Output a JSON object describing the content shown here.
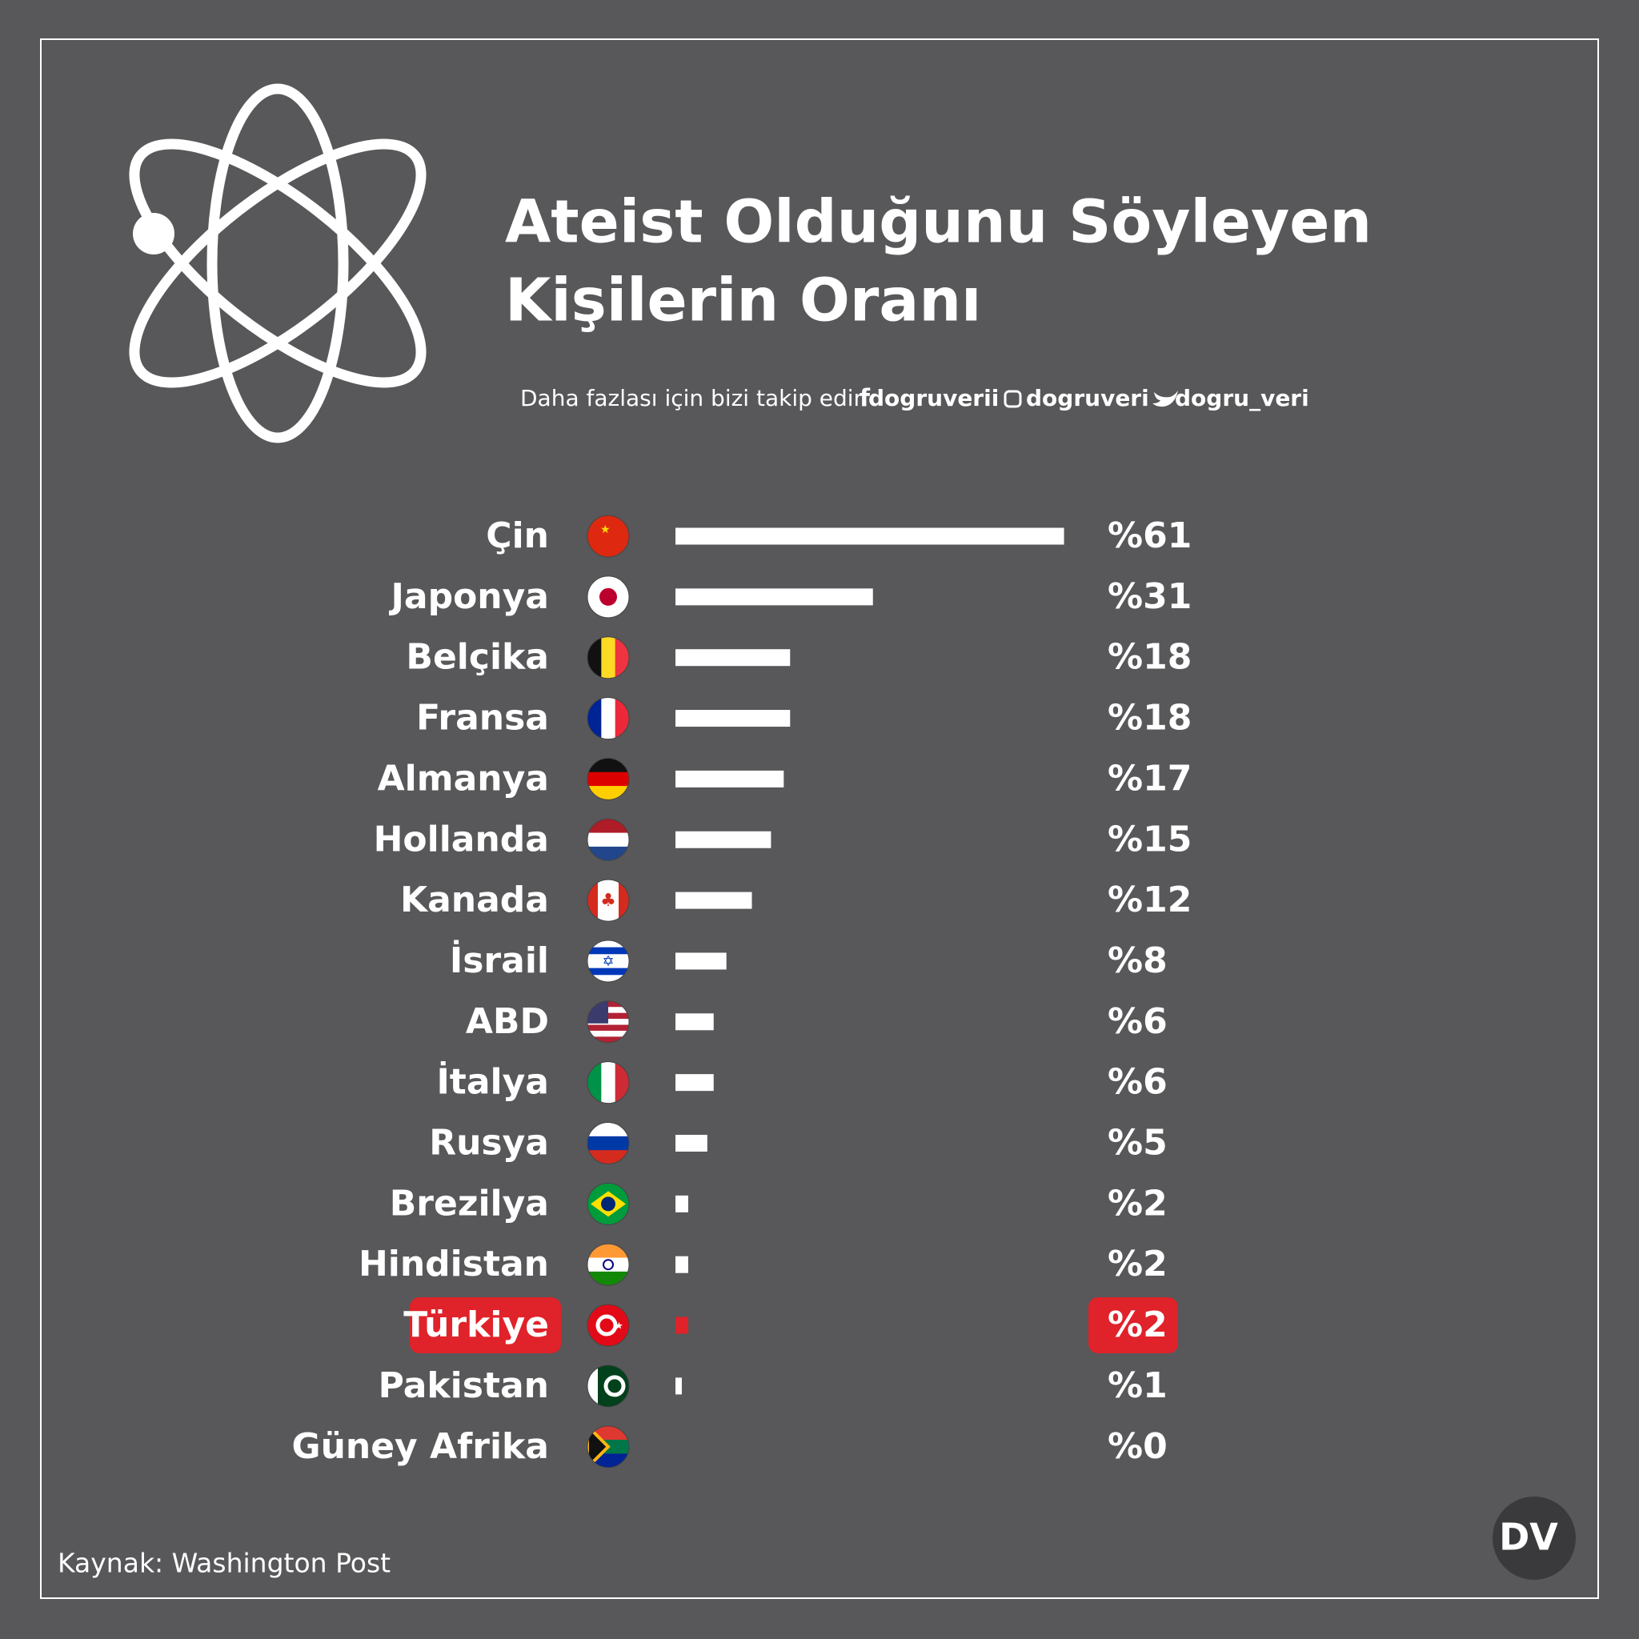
{
  "chart_data": {
    "type": "bar",
    "title": [
      "Ateist Olduğunu Söyleyen",
      "Kişilerin Oranı"
    ],
    "subtitle": "Daha fazlası için bizi takip edin",
    "social": [
      "dogruverii",
      "dogruveri",
      "dogru_veri"
    ],
    "categories": [
      "Çin",
      "Japonya",
      "Belçika",
      "Fransa",
      "Almanya",
      "Hollanda",
      "Kanada",
      "İsrail",
      "ABD",
      "İtalya",
      "Rusya",
      "Brezilya",
      "Hindistan",
      "Türkiye",
      "Pakistan",
      "Güney Afrika"
    ],
    "values": [
      61,
      31,
      18,
      18,
      17,
      15,
      12,
      8,
      6,
      6,
      5,
      2,
      2,
      2,
      1,
      0
    ],
    "value_labels": [
      "%61",
      "%31",
      "%18",
      "%18",
      "%17",
      "%15",
      "%12",
      "%8",
      "%6",
      "%6",
      "%5",
      "%2",
      "%2",
      "%2",
      "%1",
      "%0"
    ],
    "color": "#ffffff",
    "highlight": "Türkiye",
    "highlight_color": "#e0222a",
    "source": "Kaynak: Washington Post",
    "logo": "DV"
  }
}
